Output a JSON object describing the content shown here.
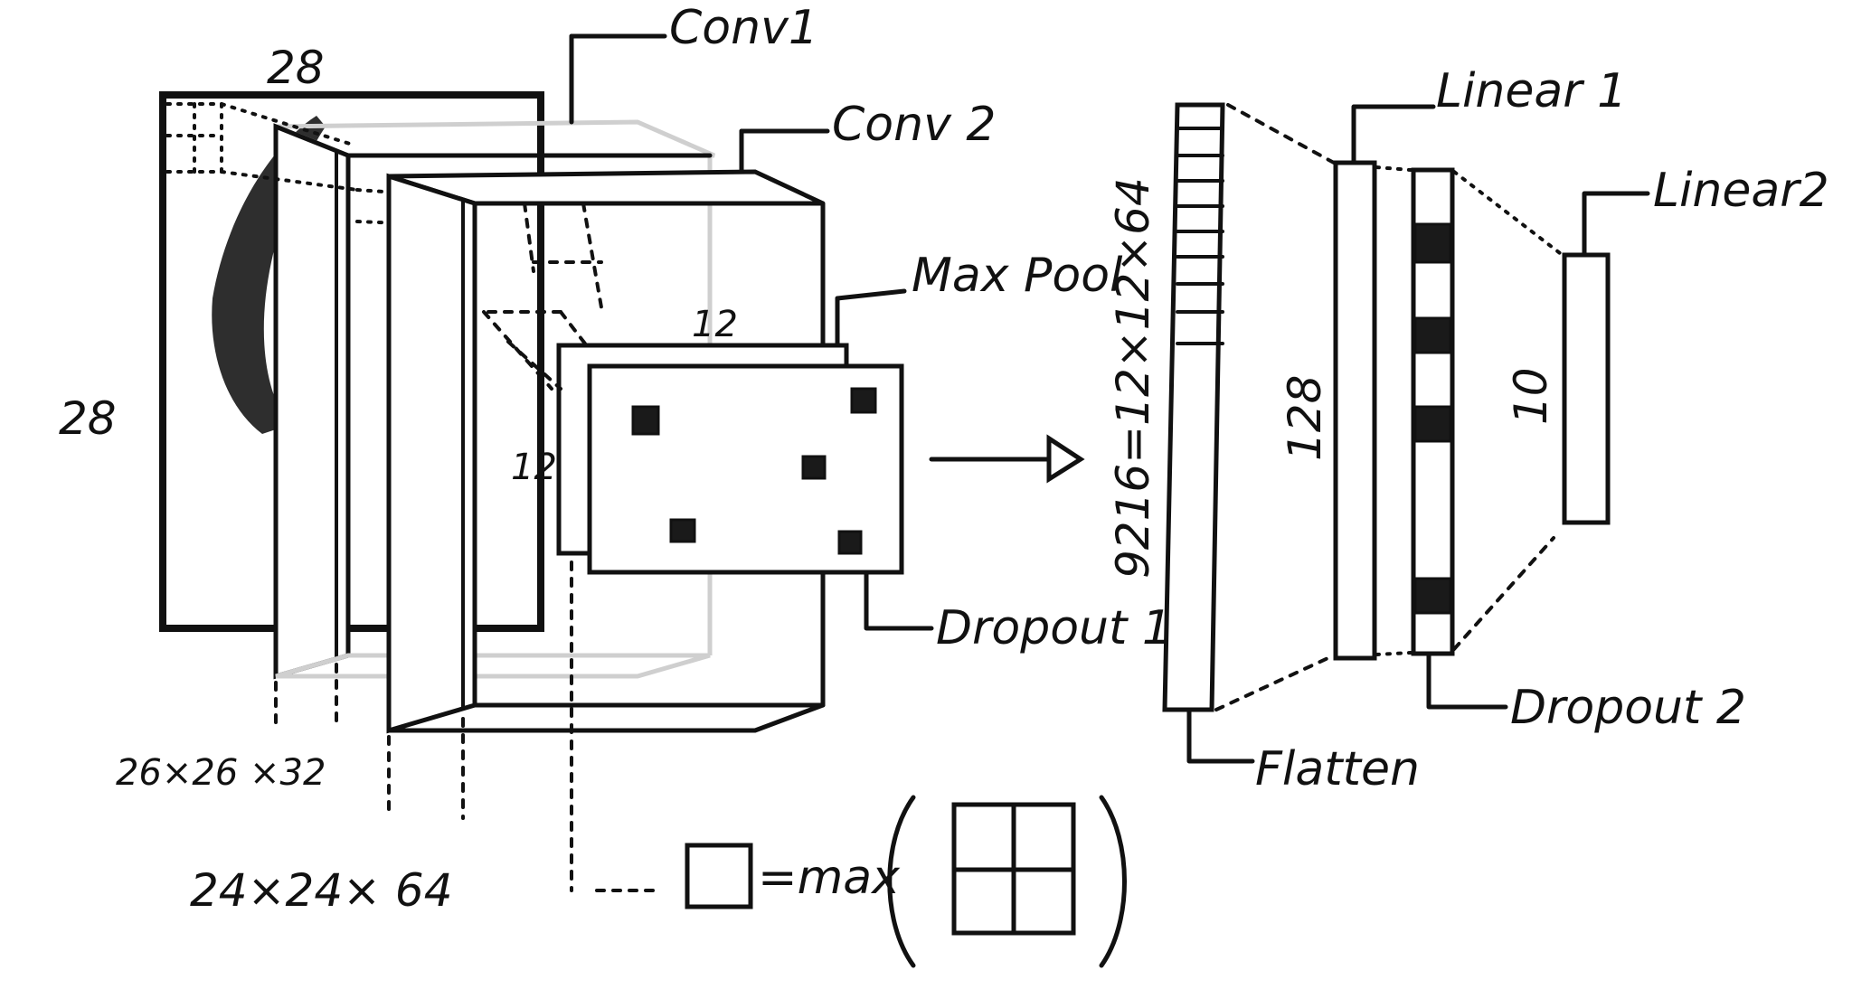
{
  "labels": {
    "conv1": "Conv1",
    "conv2": "Conv 2",
    "maxpool": "Max Pool",
    "dropout1": "Dropout 1",
    "linear1": "Linear 1",
    "linear2": "Linear2",
    "dropout2": "Dropout 2",
    "flatten": "Flatten"
  },
  "dimensions": {
    "input_width": "28",
    "input_height": "28",
    "conv1_shape": "26×26 ×32",
    "conv2_shape": "24×24× 64",
    "pool_width": "12",
    "pool_height": "12",
    "flatten_size": "9216=12×12×64",
    "linear1_size": "128",
    "linear2_size": "10"
  },
  "legend": {
    "equals_max": "=max"
  },
  "colors": {
    "ink": "#111111",
    "ghost": "#cfcfcf",
    "background": "#ffffff"
  }
}
